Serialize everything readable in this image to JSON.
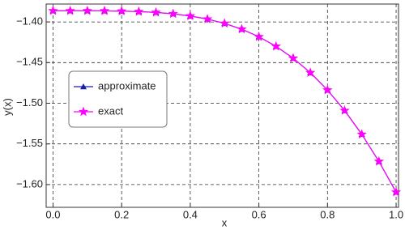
{
  "chart_data": {
    "type": "line",
    "x_label": "x",
    "y_label": "y(x)",
    "x": [
      0,
      0.05,
      0.1,
      0.15,
      0.2,
      0.25,
      0.3,
      0.35,
      0.4,
      0.45,
      0.5,
      0.55,
      0.6,
      0.65,
      0.7,
      0.75,
      0.8,
      0.85,
      0.9,
      0.95,
      1.0
    ],
    "series": [
      {
        "name": "approximate",
        "color": "#1c1ca8",
        "marker": "triangle",
        "values": [
          -1.3863,
          -1.3863,
          -1.3863,
          -1.3864,
          -1.3867,
          -1.3873,
          -1.3883,
          -1.39,
          -1.3927,
          -1.3965,
          -1.4018,
          -1.4089,
          -1.4182,
          -1.43,
          -1.4446,
          -1.4624,
          -1.4838,
          -1.509,
          -1.5382,
          -1.5716,
          -1.6094
        ]
      },
      {
        "name": "exact",
        "color": "#ff00ff",
        "marker": "star",
        "values": [
          -1.3863,
          -1.3863,
          -1.3863,
          -1.3864,
          -1.3867,
          -1.3873,
          -1.3883,
          -1.39,
          -1.3927,
          -1.3965,
          -1.4018,
          -1.4089,
          -1.4182,
          -1.43,
          -1.4446,
          -1.4624,
          -1.4838,
          -1.509,
          -1.5382,
          -1.5716,
          -1.6094
        ]
      }
    ],
    "xlim": [
      -0.02,
      1.007
    ],
    "ylim": [
      -1.628,
      -1.378
    ],
    "xticks": [
      {
        "value": 0,
        "label": "0.0"
      },
      {
        "value": 0.2,
        "label": "0.2"
      },
      {
        "value": 0.4,
        "label": "0.4"
      },
      {
        "value": 0.6,
        "label": "0.6"
      },
      {
        "value": 0.8,
        "label": "0.8"
      },
      {
        "value": 1.0,
        "label": "1.0"
      }
    ],
    "yticks": [
      {
        "value": -1.4,
        "label": "−1.40"
      },
      {
        "value": -1.45,
        "label": "−1.45"
      },
      {
        "value": -1.5,
        "label": "−1.50"
      },
      {
        "value": -1.55,
        "label": "−1.55"
      },
      {
        "value": -1.6,
        "label": "−1.60"
      }
    ],
    "grid": true,
    "legend_position": "left"
  }
}
